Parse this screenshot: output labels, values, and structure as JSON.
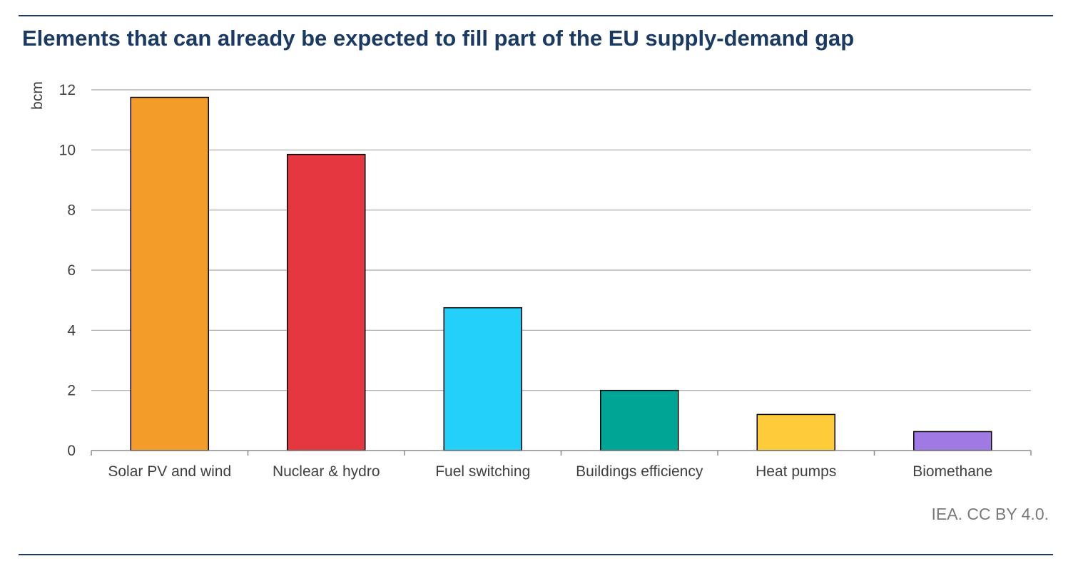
{
  "title": "Elements that can already be expected to fill part of the EU supply-demand gap",
  "credit": "IEA. CC BY 4.0.",
  "chart_data": {
    "type": "bar",
    "title": "Elements that can already be expected to fill part of the EU supply-demand gap",
    "xlabel": "",
    "ylabel": "bcm",
    "ylim": [
      0,
      12
    ],
    "yticks": [
      0,
      2,
      4,
      6,
      8,
      10,
      12
    ],
    "grid": true,
    "legend": "none",
    "categories": [
      "Solar PV and wind",
      "Nuclear & hydro",
      "Fuel switching",
      "Buildings efficiency",
      "Heat pumps",
      "Biomethane"
    ],
    "values": [
      11.75,
      9.85,
      4.75,
      2.0,
      1.2,
      0.63
    ],
    "colors": [
      "#f39c2a",
      "#e4373f",
      "#22d0fa",
      "#00a596",
      "#fecb3a",
      "#a079e4"
    ]
  }
}
